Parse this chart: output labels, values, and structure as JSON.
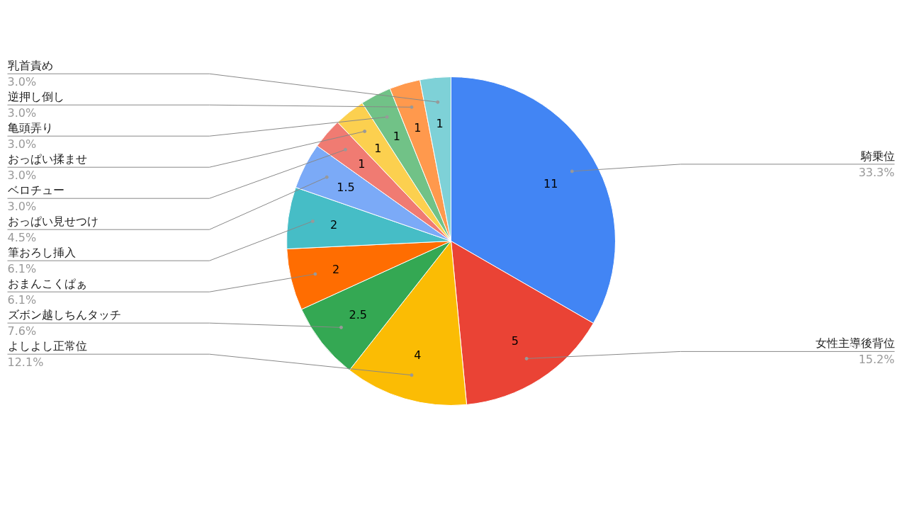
{
  "chart_data": {
    "type": "pie",
    "categories": [
      "騎乗位",
      "女性主導後背位",
      "よしよし正常位",
      "ズボン越しちんタッチ",
      "おまんこくぱぁ",
      "筆おろし挿入",
      "おっぱい見せつけ",
      "ベロチュー",
      "おっぱい揉ませ",
      "亀頭弄り",
      "逆押し倒し",
      "乳首責め"
    ],
    "values": [
      11,
      5,
      4,
      2.5,
      2,
      2,
      1.5,
      1,
      1,
      1,
      1,
      1
    ],
    "colors": [
      "#4285f4",
      "#ea4335",
      "#fbbc04",
      "#34a853",
      "#ff6d01",
      "#46bdc6",
      "#7baaf7",
      "#f07b72",
      "#fcd04f",
      "#71c287",
      "#ff994d",
      "#7ed1d7"
    ],
    "data_labels": true,
    "annotations": [
      "33.3%",
      "15.2%",
      "12.1%",
      "7.6%",
      "6.1%",
      "6.1%",
      "4.5%",
      "3.0%",
      "3.0%",
      "3.0%",
      "3.0%",
      "3.0%"
    ]
  }
}
